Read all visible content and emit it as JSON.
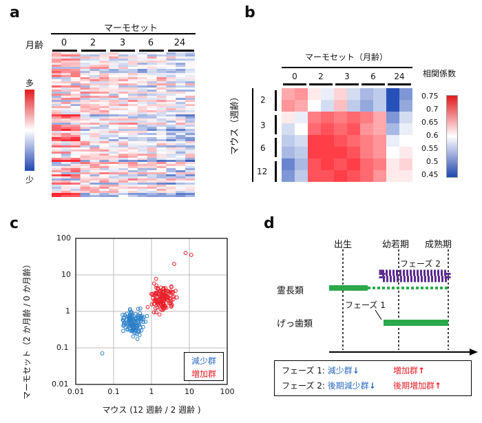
{
  "panel_a": {
    "label": "a",
    "species": "マーモセット",
    "age_label": "月齢",
    "ages": [
      "0",
      "2",
      "3",
      "6",
      "24"
    ],
    "scale_high": "多",
    "scale_low": "少"
  },
  "panel_b": {
    "label": "b",
    "title": "マーモセット（月齢）",
    "cols": [
      "0",
      "2",
      "3",
      "6",
      "24"
    ],
    "mouse_label": "マウス（週齢）",
    "rows": [
      "2",
      "3",
      "6",
      "12"
    ],
    "colorbar_title": "相関係数",
    "colorbar_ticks": [
      "0.75",
      "0.7",
      "0.65",
      "0.6",
      "0.55",
      "0.5",
      "0.45"
    ]
  },
  "panel_c": {
    "label": "c",
    "xlabel": "マウス (12 週齢 / 2 週齢 )",
    "ylabel": "マーモセット（2 か月齢 / 0 か月齢）",
    "ticks": [
      "0.01",
      "0.1",
      "1",
      "10",
      "100"
    ],
    "legend_dec": "減少群",
    "legend_inc": "増加群"
  },
  "panel_d": {
    "label": "d",
    "milestones": [
      "出生",
      "幼若期",
      "成熟期"
    ],
    "phase2": "フェーズ 2",
    "phase1": "フェーズ 1",
    "primates": "霊長類",
    "rodents": "げっ歯類",
    "legend_row1_prefix": "フェーズ 1: ",
    "legend_row1_dec": "減少群",
    "legend_row1_inc": "増加群",
    "legend_row2_prefix": "フェーズ 2: ",
    "legend_row2_dec": "後期減少群",
    "legend_row2_inc": "後期増加群"
  },
  "colors": {
    "red": "#e8202a",
    "blue": "#2a6cc0",
    "purple": "#5b2d90",
    "green": "#2aa84a"
  }
}
